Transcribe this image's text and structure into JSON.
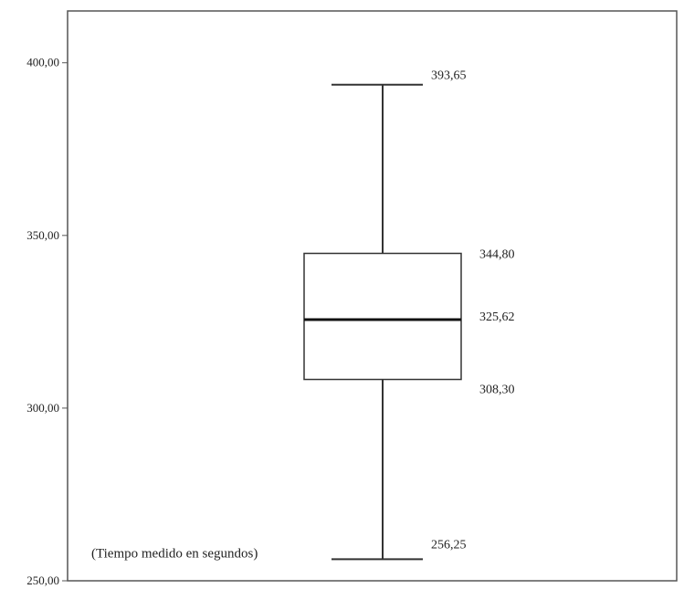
{
  "chart_data": {
    "type": "boxplot",
    "axis": {
      "ylim": [
        250,
        415
      ],
      "ticks": [
        400,
        350,
        300,
        250
      ],
      "tick_labels": [
        "400,00",
        "350,00",
        "300,00",
        "250,00"
      ],
      "grid": false
    },
    "box": {
      "min": 256.25,
      "q1": 308.3,
      "median": 325.62,
      "q3": 344.8,
      "max": 393.65
    },
    "value_labels": {
      "max": "393,65",
      "q3": "344,80",
      "median": "325,62",
      "q1": "308,30",
      "min": "256,25"
    },
    "annotation": "(Tiempo medido en segundos)",
    "colors": {
      "frame": "#555555",
      "box": "#333333",
      "median": "#111111"
    }
  }
}
